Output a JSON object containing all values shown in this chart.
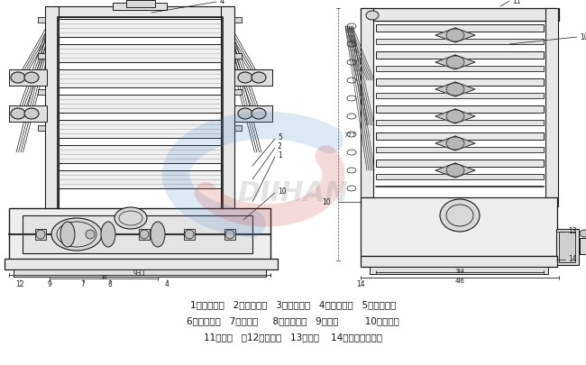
{
  "background_color": "#ffffff",
  "legend_lines": [
    "1，传动主轴   2，小斜齿轮   3，大斜齿轮   4，上偏心轮   5，下偏心轮",
    "6，小斜齿轮   7，凸轮轴     8，大斜齿轮   9，凸轮         10，球动杆",
    "11，扯导   　12，抣油器   13，螺塔    14，自动停车装置"
  ],
  "legend_fontsize": 7.5,
  "fig_width": 6.5,
  "fig_height": 4.06,
  "dpi": 100,
  "lc": "#1a1a1a",
  "watermark_blue": "#4488cc",
  "watermark_red": "#cc3333",
  "watermark_alpha": 0.18
}
